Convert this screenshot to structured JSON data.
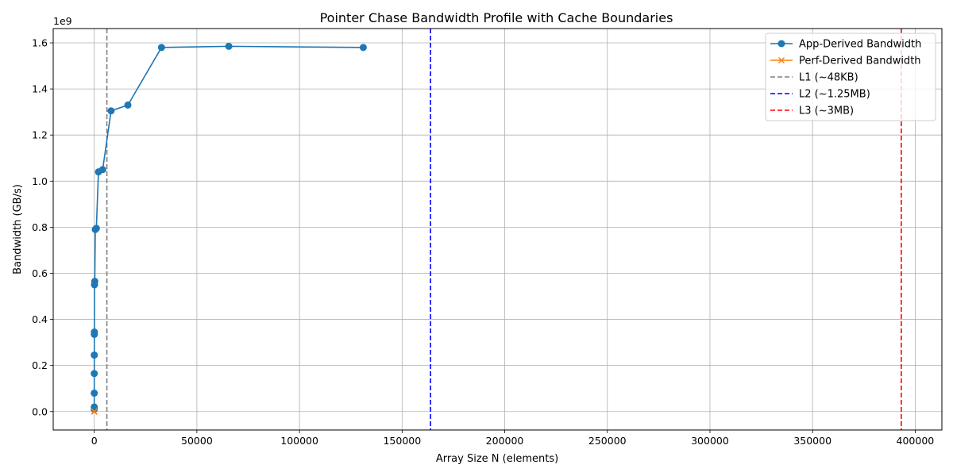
{
  "chart_data": {
    "type": "line",
    "title": "Pointer Chase Bandwidth Profile with Cache Boundaries",
    "xlabel": "Array Size N (elements)",
    "ylabel": "Bandwidth (GB/s)",
    "y_offset_label": "1e9",
    "xlim": [
      -20000,
      413000
    ],
    "ylim": [
      -0.08,
      1.662
    ],
    "y_scale_factor": 1000000000,
    "grid": true,
    "legend_position": "top-right",
    "x_ticks": [
      0,
      50000,
      100000,
      150000,
      200000,
      250000,
      300000,
      350000,
      400000
    ],
    "x_tick_labels": [
      "0",
      "50000",
      "100000",
      "150000",
      "200000",
      "250000",
      "300000",
      "350000",
      "400000"
    ],
    "y_ticks": [
      0.0,
      0.2,
      0.4,
      0.6,
      0.8,
      1.0,
      1.2,
      1.4,
      1.6
    ],
    "y_tick_labels": [
      "0.0",
      "0.2",
      "0.4",
      "0.6",
      "0.8",
      "1.0",
      "1.2",
      "1.4",
      "1.6"
    ],
    "series": [
      {
        "name": "App-Derived Bandwidth",
        "color": "#1f77b4",
        "marker": "circle",
        "x": [
          1,
          2,
          4,
          8,
          16,
          32,
          64,
          128,
          256,
          512,
          1024,
          2048,
          4096,
          8192,
          16384,
          32768,
          65536,
          131072
        ],
        "y": [
          0.01,
          0.02,
          0.08,
          0.165,
          0.245,
          0.335,
          0.345,
          0.55,
          0.565,
          0.79,
          0.795,
          1.04,
          1.05,
          1.305,
          1.33,
          1.58,
          1.585,
          1.58
        ]
      },
      {
        "name": "Perf-Derived Bandwidth",
        "color": "#ff7f0e",
        "marker": "x",
        "x": [
          1,
          2,
          4,
          8
        ],
        "y": [
          0.0,
          0.0,
          0.0,
          0.0
        ]
      }
    ],
    "vlines": [
      {
        "name": "L1 (~48KB)",
        "x": 6144,
        "color": "#808080"
      },
      {
        "name": "L2 (~1.25MB)",
        "x": 163840,
        "color": "#0000ff"
      },
      {
        "name": "L3 (~3MB)",
        "x": 393216,
        "color": "#ff0000"
      }
    ]
  }
}
